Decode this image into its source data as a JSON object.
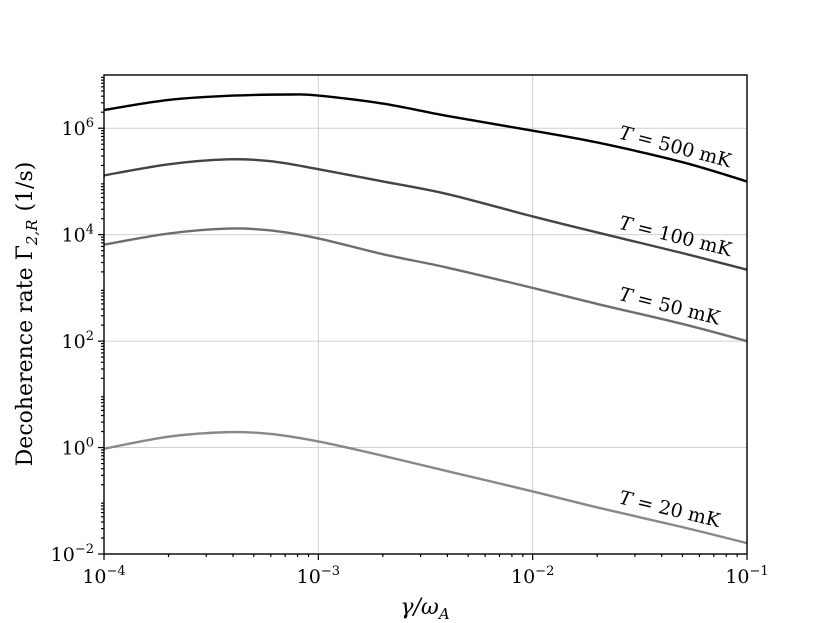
{
  "chart_data": {
    "type": "line",
    "title": "",
    "xlabel": "γ/ω",
    "xlabel_sub": "A",
    "ylabel": "Decoherence rate Γ",
    "ylabel_sub": "2,R",
    "ylabel_unit": "(1/s)",
    "x_scale": "log",
    "y_scale": "log",
    "xlim": [
      0.0001,
      0.1
    ],
    "ylim": [
      0.01,
      10000000
    ],
    "grid": true,
    "x_ticks": [
      {
        "value": 0.0001,
        "base": "10",
        "exp": "−4"
      },
      {
        "value": 0.001,
        "base": "10",
        "exp": "−3"
      },
      {
        "value": 0.01,
        "base": "10",
        "exp": "−2"
      },
      {
        "value": 0.1,
        "base": "10",
        "exp": "−1"
      }
    ],
    "y_ticks": [
      {
        "value": 0.01,
        "base": "10",
        "exp": "−2"
      },
      {
        "value": 1,
        "base": "10",
        "exp": "0"
      },
      {
        "value": 100,
        "base": "10",
        "exp": "2"
      },
      {
        "value": 10000,
        "base": "10",
        "exp": "4"
      },
      {
        "value": 1000000,
        "base": "10",
        "exp": "6"
      }
    ],
    "series": [
      {
        "name": "T = 500 mK",
        "color": "#000000",
        "x": [
          0.0001,
          0.0002,
          0.0004,
          0.00075,
          0.001,
          0.002,
          0.004,
          0.01,
          0.02,
          0.05,
          0.1
        ],
        "y": [
          2200000,
          3400000,
          4100000,
          4300000,
          4100000,
          2900000,
          1700000,
          900000,
          540000,
          230000,
          100000
        ]
      },
      {
        "name": "T = 100 mK",
        "color": "#444444",
        "x": [
          0.0001,
          0.0002,
          0.00038,
          0.0006,
          0.001,
          0.002,
          0.004,
          0.01,
          0.02,
          0.05,
          0.1
        ],
        "y": [
          130000,
          210000,
          260000,
          240000,
          170000,
          100000,
          58000,
          22000,
          11000,
          4500,
          2200
        ]
      },
      {
        "name": "T = 50 mK",
        "color": "#6e6e6e",
        "x": [
          0.0001,
          0.0002,
          0.00038,
          0.0006,
          0.001,
          0.002,
          0.004,
          0.01,
          0.02,
          0.05,
          0.1
        ],
        "y": [
          6500,
          10500,
          13000,
          12000,
          8500,
          4300,
          2400,
          1000,
          500,
          210,
          100
        ]
      },
      {
        "name": "T = 20 mK",
        "color": "#888888",
        "x": [
          0.0001,
          0.0002,
          0.00038,
          0.0006,
          0.001,
          0.002,
          0.004,
          0.01,
          0.02,
          0.05,
          0.1
        ],
        "y": [
          0.95,
          1.6,
          1.95,
          1.8,
          1.3,
          0.7,
          0.36,
          0.15,
          0.075,
          0.032,
          0.016
        ]
      }
    ]
  }
}
